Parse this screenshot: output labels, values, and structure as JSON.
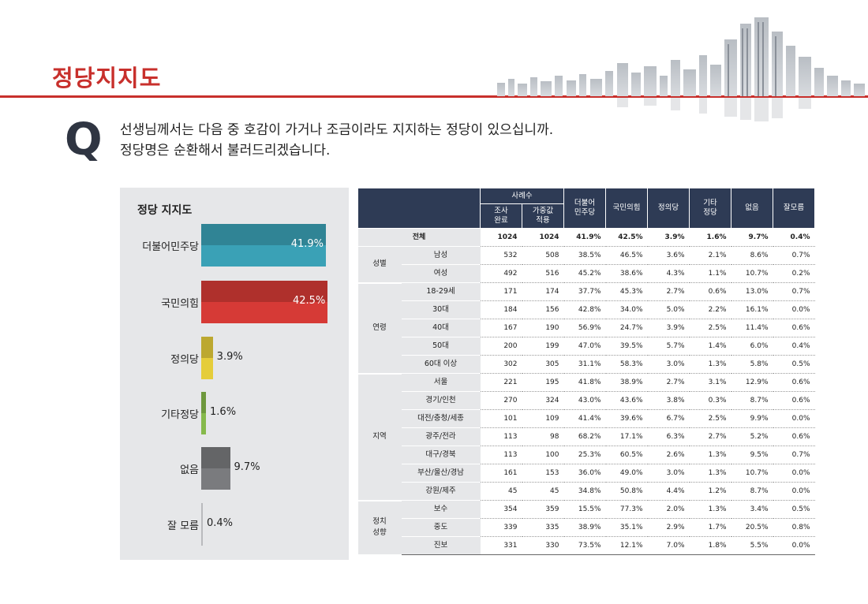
{
  "page": {
    "title": "정당지지도",
    "question_mark": "Q",
    "question_line1": "선생님께서는 다음 중 호감이 가거나 조금이라도 지지하는 정당이 있으십니까.",
    "question_line2": "정당명은 순환해서 불러드리겠습니다."
  },
  "colors": {
    "brand_red": "#c8302c",
    "header_navy": "#2e3b55",
    "panel_gray": "#e6e7e9"
  },
  "chart_data": {
    "type": "bar",
    "title": "정당 지지도",
    "categories": [
      "더불어민주당",
      "국민의힘",
      "정의당",
      "기타정당",
      "없음",
      "잘 모름"
    ],
    "values": [
      41.9,
      42.5,
      3.9,
      1.6,
      9.7,
      0.4
    ],
    "value_labels": [
      "41.9%",
      "42.5%",
      "3.9%",
      "1.6%",
      "9.7%",
      "0.4%"
    ],
    "colors": [
      "#3aa1b6",
      "#d63a36",
      "#e5cd3a",
      "#86b94b",
      "#7a7b7e",
      "#8e8f92"
    ],
    "orientation": "horizontal",
    "xlim": [
      0,
      42.5
    ]
  },
  "table": {
    "header_sample": "사례수",
    "columns": [
      "조사\n완료",
      "가중값\n적용",
      "더불어\n민주당",
      "국민의힘",
      "정의당",
      "기타\n정당",
      "없음",
      "잘모름"
    ],
    "total": {
      "label": "전체",
      "values": [
        "1024",
        "1024",
        "41.9%",
        "42.5%",
        "3.9%",
        "1.6%",
        "9.7%",
        "0.4%"
      ]
    },
    "groups": [
      {
        "name": "성별",
        "rows": [
          {
            "label": "남성",
            "values": [
              "532",
              "508",
              "38.5%",
              "46.5%",
              "3.6%",
              "2.1%",
              "8.6%",
              "0.7%"
            ]
          },
          {
            "label": "여성",
            "values": [
              "492",
              "516",
              "45.2%",
              "38.6%",
              "4.3%",
              "1.1%",
              "10.7%",
              "0.2%"
            ]
          }
        ]
      },
      {
        "name": "연령",
        "rows": [
          {
            "label": "18-29세",
            "values": [
              "171",
              "174",
              "37.7%",
              "45.3%",
              "2.7%",
              "0.6%",
              "13.0%",
              "0.7%"
            ]
          },
          {
            "label": "30대",
            "values": [
              "184",
              "156",
              "42.8%",
              "34.0%",
              "5.0%",
              "2.2%",
              "16.1%",
              "0.0%"
            ]
          },
          {
            "label": "40대",
            "values": [
              "167",
              "190",
              "56.9%",
              "24.7%",
              "3.9%",
              "2.5%",
              "11.4%",
              "0.6%"
            ]
          },
          {
            "label": "50대",
            "values": [
              "200",
              "199",
              "47.0%",
              "39.5%",
              "5.7%",
              "1.4%",
              "6.0%",
              "0.4%"
            ]
          },
          {
            "label": "60대 이상",
            "values": [
              "302",
              "305",
              "31.1%",
              "58.3%",
              "3.0%",
              "1.3%",
              "5.8%",
              "0.5%"
            ]
          }
        ]
      },
      {
        "name": "지역",
        "rows": [
          {
            "label": "서울",
            "values": [
              "221",
              "195",
              "41.8%",
              "38.9%",
              "2.7%",
              "3.1%",
              "12.9%",
              "0.6%"
            ]
          },
          {
            "label": "경기/인천",
            "values": [
              "270",
              "324",
              "43.0%",
              "43.6%",
              "3.8%",
              "0.3%",
              "8.7%",
              "0.6%"
            ]
          },
          {
            "label": "대전/충청/세종",
            "values": [
              "101",
              "109",
              "41.4%",
              "39.6%",
              "6.7%",
              "2.5%",
              "9.9%",
              "0.0%"
            ]
          },
          {
            "label": "광주/전라",
            "values": [
              "113",
              "98",
              "68.2%",
              "17.1%",
              "6.3%",
              "2.7%",
              "5.2%",
              "0.6%"
            ]
          },
          {
            "label": "대구/경북",
            "values": [
              "113",
              "100",
              "25.3%",
              "60.5%",
              "2.6%",
              "1.3%",
              "9.5%",
              "0.7%"
            ]
          },
          {
            "label": "부산/울산/경남",
            "values": [
              "161",
              "153",
              "36.0%",
              "49.0%",
              "3.0%",
              "1.3%",
              "10.7%",
              "0.0%"
            ]
          },
          {
            "label": "강원/제주",
            "values": [
              "45",
              "45",
              "34.8%",
              "50.8%",
              "4.4%",
              "1.2%",
              "8.7%",
              "0.0%"
            ]
          }
        ]
      },
      {
        "name": "정치\n성향",
        "rows": [
          {
            "label": "보수",
            "values": [
              "354",
              "359",
              "15.5%",
              "77.3%",
              "2.0%",
              "1.3%",
              "3.4%",
              "0.5%"
            ]
          },
          {
            "label": "중도",
            "values": [
              "339",
              "335",
              "38.9%",
              "35.1%",
              "2.9%",
              "1.7%",
              "20.5%",
              "0.8%"
            ]
          },
          {
            "label": "진보",
            "values": [
              "331",
              "330",
              "73.5%",
              "12.1%",
              "7.0%",
              "1.8%",
              "5.5%",
              "0.0%"
            ]
          }
        ]
      }
    ]
  }
}
